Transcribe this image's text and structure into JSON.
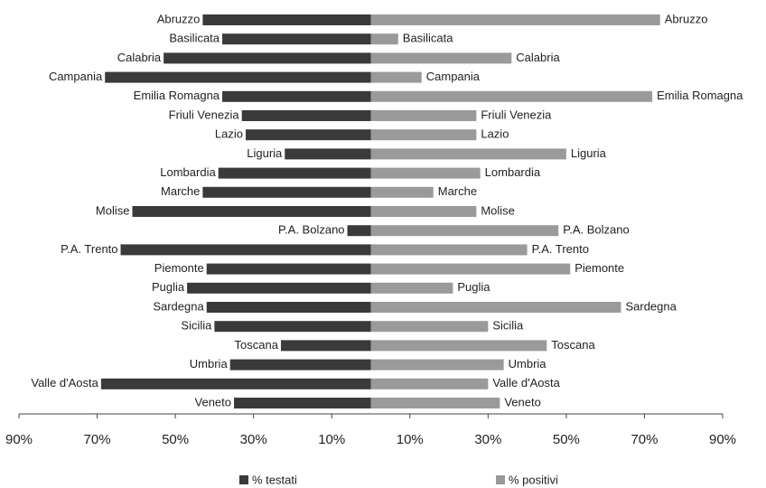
{
  "chart_data": {
    "type": "butterfly",
    "categories": [
      "Abruzzo",
      "Basilicata",
      "Calabria",
      "Campania",
      "Emilia Romagna",
      "Friuli Venezia",
      "Lazio",
      "Liguria",
      "Lombardia",
      "Marche",
      "Molise",
      "P.A. Bolzano",
      "P.A. Trento",
      "Piemonte",
      "Puglia",
      "Sardegna",
      "Sicilia",
      "Toscana",
      "Umbria",
      "Valle d'Aosta",
      "Veneto"
    ],
    "series": [
      {
        "name": "% testati",
        "color": "#3a3a3a",
        "side": "left",
        "values": [
          43,
          38,
          53,
          68,
          38,
          33,
          32,
          22,
          39,
          43,
          61,
          6,
          64,
          42,
          47,
          42,
          40,
          23,
          36,
          69,
          35
        ]
      },
      {
        "name": "% positivi",
        "color": "#9a9a9a",
        "side": "right",
        "values": [
          74,
          7,
          36,
          13,
          72,
          27,
          27,
          50,
          28,
          16,
          27,
          48,
          40,
          51,
          21,
          64,
          30,
          45,
          34,
          30,
          33
        ]
      }
    ],
    "xlim": [
      -90,
      90
    ],
    "xticks": [
      {
        "value": -90,
        "label": "90%"
      },
      {
        "value": -70,
        "label": "70%"
      },
      {
        "value": -50,
        "label": "50%"
      },
      {
        "value": -30,
        "label": "30%"
      },
      {
        "value": -10,
        "label": "10%"
      },
      {
        "value": 10,
        "label": "10%"
      },
      {
        "value": 30,
        "label": "30%"
      },
      {
        "value": 50,
        "label": "50%"
      },
      {
        "value": 70,
        "label": "70%"
      },
      {
        "value": 90,
        "label": "90%"
      }
    ],
    "legend": "bottom"
  }
}
